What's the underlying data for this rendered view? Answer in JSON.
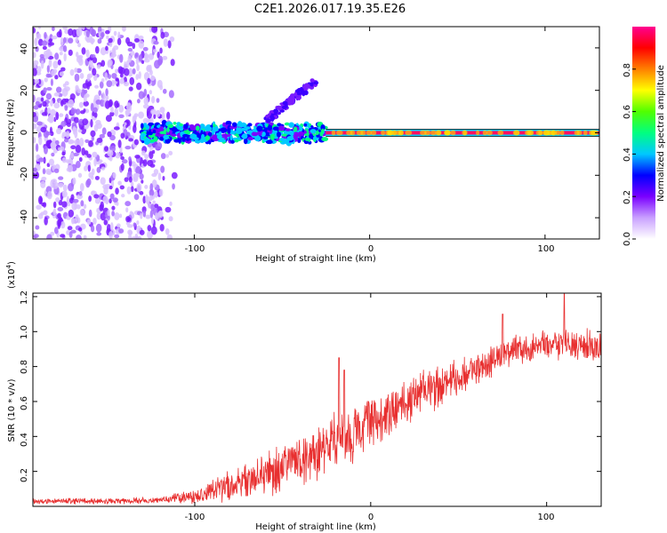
{
  "chart_data": [
    {
      "type": "heatmap",
      "title": "C2E1.2026.017.19.35.E26",
      "xlabel": "Height of straight line (km)",
      "ylabel": "Frequency (Hz)",
      "xlim": [
        -192,
        131
      ],
      "ylim": [
        -50,
        50
      ],
      "xticks": [
        -100,
        0,
        100
      ],
      "xtick_labels": [
        "-100",
        "0",
        "100"
      ],
      "yticks": [
        -40,
        -20,
        0,
        20,
        40
      ],
      "ytick_labels": [
        "-40",
        "-20",
        "0",
        "20",
        "40"
      ],
      "colorbar": {
        "label": "Normalized spectral amplitude",
        "range": [
          0,
          1
        ],
        "ticks": [
          0.0,
          0.2,
          0.4,
          0.6,
          0.8
        ],
        "tick_labels": [
          "0.0",
          "0.2",
          "0.4",
          "0.6",
          "0.8"
        ],
        "colors": [
          "#ffffff",
          "#c9a0ff",
          "#7a00ff",
          "#0000ff",
          "#00c8ff",
          "#00ff80",
          "#50ff00",
          "#ffff00",
          "#ff8000",
          "#ff0000",
          "#ff0090"
        ]
      },
      "features": [
        {
          "name": "broadband noise",
          "x_range": [
            -192,
            -110
          ],
          "y_range": [
            -50,
            50
          ],
          "amplitude": 0.2
        },
        {
          "name": "trail band",
          "x_range": [
            -130,
            -25
          ],
          "y_range": [
            -5,
            5
          ],
          "amplitude": 0.4
        },
        {
          "name": "rising streak",
          "x_range": [
            -60,
            -30
          ],
          "y_range": [
            5,
            25
          ],
          "amplitude": 0.25
        },
        {
          "name": "central line",
          "x_range": [
            -25,
            131
          ],
          "y_range": [
            -1,
            1
          ],
          "amplitude": 0.95
        }
      ]
    },
    {
      "type": "line",
      "xlabel": "Height of straight line (km)",
      "ylabel": "SNR (10 * v/v)",
      "multiplier": "(x10",
      "multiplier_exp": "4",
      "multiplier_close": ")",
      "xlim": [
        -192,
        131
      ],
      "ylim": [
        0,
        1.22
      ],
      "xticks": [
        -100,
        0,
        100
      ],
      "xtick_labels": [
        "-100",
        "0",
        "100"
      ],
      "yticks": [
        0.2,
        0.4,
        0.6,
        0.8,
        1.0,
        1.2
      ],
      "ytick_labels": [
        "0.2",
        "0.4",
        "0.6",
        "0.8",
        "1.0",
        "1.2"
      ],
      "color": "#e83030",
      "x": [
        -192,
        -150,
        -120,
        -100,
        -80,
        -60,
        -40,
        -20,
        0,
        20,
        40,
        60,
        80,
        100,
        131
      ],
      "mean": [
        0.03,
        0.03,
        0.035,
        0.06,
        0.12,
        0.18,
        0.26,
        0.36,
        0.47,
        0.6,
        0.7,
        0.78,
        0.9,
        0.92,
        0.93
      ],
      "spread": [
        0.02,
        0.02,
        0.02,
        0.05,
        0.1,
        0.14,
        0.18,
        0.2,
        0.18,
        0.16,
        0.14,
        0.12,
        0.1,
        0.1,
        0.1
      ],
      "spikes": [
        {
          "x": -15,
          "y": 0.78
        },
        {
          "x": -18,
          "y": 0.85
        },
        {
          "x": 110,
          "y": 1.22
        },
        {
          "x": 75,
          "y": 1.1
        }
      ]
    }
  ]
}
